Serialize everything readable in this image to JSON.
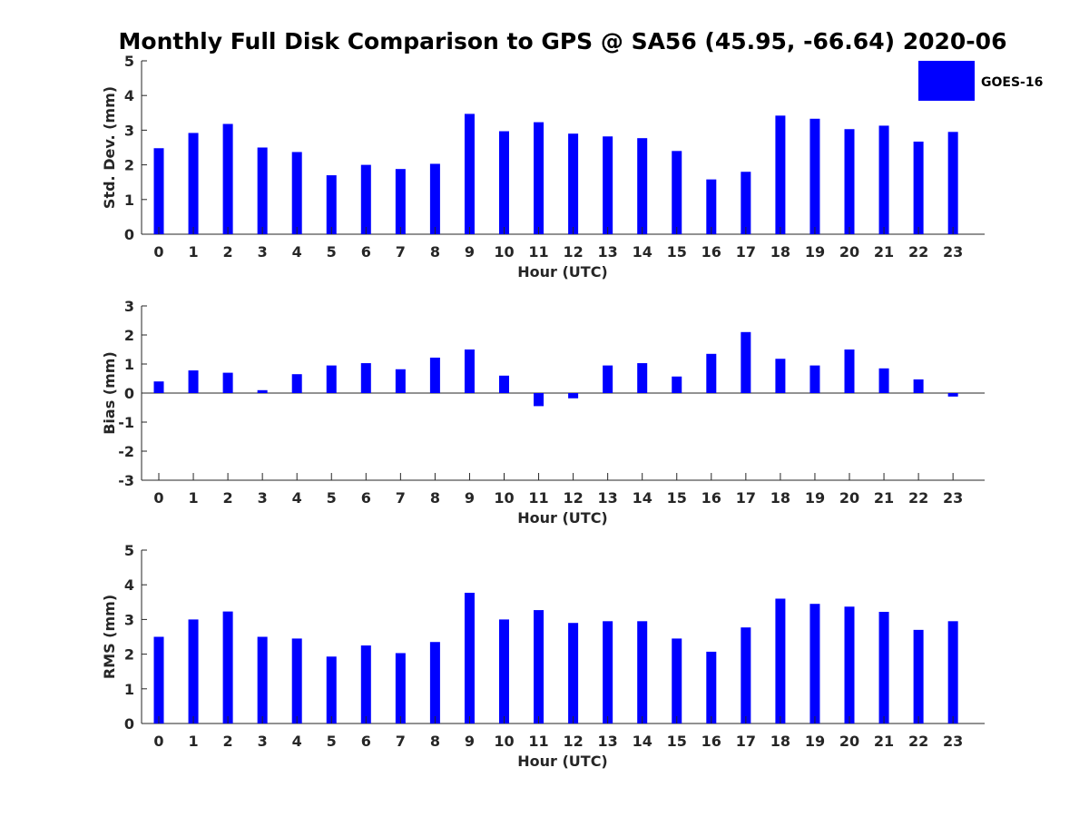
{
  "title": "Monthly Full Disk Comparison to GPS @ SA56 (45.95, -66.64) 2020-06",
  "legend": {
    "label": "GOES-16",
    "color": "#0000ff",
    "placement": "top-right"
  },
  "chart_data": [
    {
      "type": "bar",
      "categories": [
        "0",
        "1",
        "2",
        "3",
        "4",
        "5",
        "6",
        "7",
        "8",
        "9",
        "10",
        "11",
        "12",
        "13",
        "14",
        "15",
        "16",
        "17",
        "18",
        "19",
        "20",
        "21",
        "22",
        "23"
      ],
      "series": [
        {
          "name": "GOES-16",
          "color": "#0000ff",
          "values": [
            2.48,
            2.92,
            3.18,
            2.5,
            2.37,
            1.7,
            2.0,
            1.88,
            2.03,
            3.47,
            2.97,
            3.23,
            2.9,
            2.82,
            2.77,
            2.4,
            1.58,
            1.8,
            3.42,
            3.33,
            3.03,
            3.13,
            2.67,
            2.95
          ]
        }
      ],
      "xlabel": "Hour (UTC)",
      "ylabel": "Std. Dev. (mm)",
      "ylim": [
        0,
        5
      ],
      "yticks": [
        "0",
        "1",
        "2",
        "3",
        "4",
        "5"
      ],
      "grid": false
    },
    {
      "type": "bar",
      "categories": [
        "0",
        "1",
        "2",
        "3",
        "4",
        "5",
        "6",
        "7",
        "8",
        "9",
        "10",
        "11",
        "12",
        "13",
        "14",
        "15",
        "16",
        "17",
        "18",
        "19",
        "20",
        "21",
        "22",
        "23"
      ],
      "series": [
        {
          "name": "GOES-16",
          "color": "#0000ff",
          "values": [
            0.4,
            0.78,
            0.7,
            0.1,
            0.65,
            0.95,
            1.03,
            0.82,
            1.22,
            1.5,
            0.6,
            -0.45,
            -0.18,
            0.95,
            1.03,
            0.57,
            1.35,
            2.1,
            1.18,
            0.95,
            1.5,
            0.85,
            0.47,
            -0.12
          ]
        }
      ],
      "xlabel": "Hour (UTC)",
      "ylabel": "Bias (mm)",
      "ylim": [
        -3,
        3
      ],
      "yticks": [
        "-3",
        "-2",
        "-1",
        "0",
        "1",
        "2",
        "3"
      ],
      "zero_line": true,
      "grid": false
    },
    {
      "type": "bar",
      "categories": [
        "0",
        "1",
        "2",
        "3",
        "4",
        "5",
        "6",
        "7",
        "8",
        "9",
        "10",
        "11",
        "12",
        "13",
        "14",
        "15",
        "16",
        "17",
        "18",
        "19",
        "20",
        "21",
        "22",
        "23"
      ],
      "series": [
        {
          "name": "GOES-16",
          "color": "#0000ff",
          "values": [
            2.5,
            3.0,
            3.23,
            2.5,
            2.45,
            1.93,
            2.25,
            2.03,
            2.35,
            3.77,
            3.0,
            3.27,
            2.9,
            2.95,
            2.95,
            2.45,
            2.07,
            2.77,
            3.6,
            3.45,
            3.37,
            3.22,
            2.7,
            2.95
          ]
        }
      ],
      "xlabel": "Hour (UTC)",
      "ylabel": "RMS (mm)",
      "ylim": [
        0,
        5
      ],
      "yticks": [
        "0",
        "1",
        "2",
        "3",
        "4",
        "5"
      ],
      "grid": false
    }
  ]
}
